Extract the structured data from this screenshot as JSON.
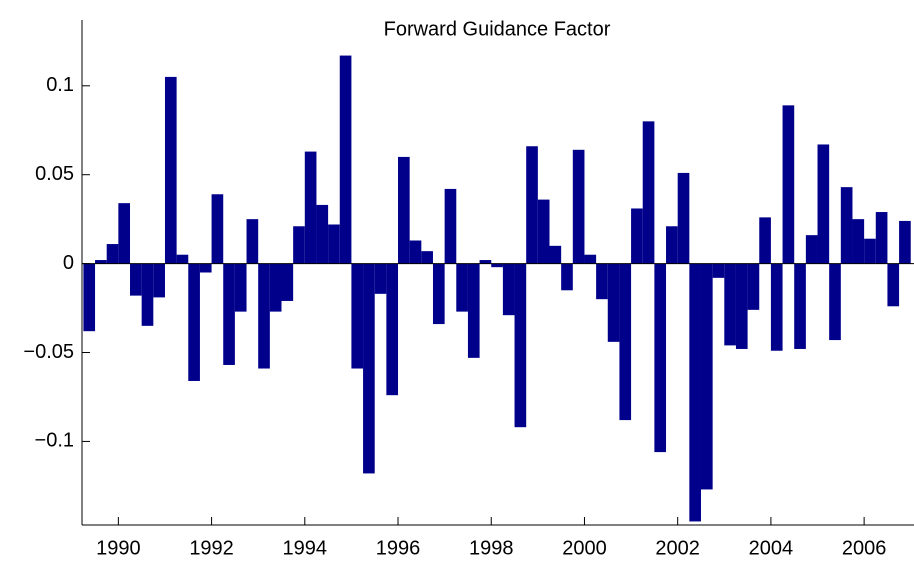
{
  "chart_data": {
    "type": "bar",
    "title": "Forward Guidance Factor",
    "color": "#00008b",
    "x": [
      1989.25,
      1989.5,
      1989.75,
      1990,
      1990.25,
      1990.5,
      1990.75,
      1991,
      1991.25,
      1991.5,
      1991.75,
      1992,
      1992.25,
      1992.5,
      1992.75,
      1993,
      1993.25,
      1993.5,
      1993.75,
      1994,
      1994.25,
      1994.5,
      1994.75,
      1995,
      1995.25,
      1995.5,
      1995.75,
      1996,
      1996.25,
      1996.5,
      1996.75,
      1997,
      1997.25,
      1997.5,
      1997.75,
      1998,
      1998.25,
      1998.5,
      1998.75,
      1999,
      1999.25,
      1999.5,
      1999.75,
      2000,
      2000.25,
      2000.5,
      2000.75,
      2001,
      2001.25,
      2001.5,
      2001.75,
      2002,
      2002.25,
      2002.5,
      2002.75,
      2003,
      2003.25,
      2003.5,
      2003.75,
      2004,
      2004.25,
      2004.5,
      2004.75,
      2005,
      2005.25,
      2005.5,
      2005.75,
      2006,
      2006.25,
      2006.5,
      2006.75
    ],
    "values": [
      -0.038,
      0.002,
      0.011,
      0.034,
      -0.018,
      -0.035,
      -0.019,
      0.105,
      0.005,
      -0.066,
      -0.005,
      0.039,
      -0.057,
      -0.027,
      0.025,
      -0.059,
      -0.027,
      -0.021,
      0.021,
      0.063,
      0.033,
      0.022,
      0.117,
      -0.059,
      -0.118,
      -0.017,
      -0.074,
      0.06,
      0.013,
      0.007,
      -0.034,
      0.042,
      -0.027,
      -0.053,
      0.002,
      -0.002,
      -0.029,
      -0.092,
      0.066,
      0.036,
      0.01,
      -0.015,
      0.064,
      0.005,
      -0.02,
      -0.044,
      -0.088,
      0.031,
      0.08,
      -0.106,
      0.021,
      0.051,
      -0.145,
      -0.127,
      -0.008,
      -0.046,
      -0.048,
      -0.026,
      0.026,
      -0.049,
      0.089,
      -0.048,
      0.016,
      0.067,
      -0.043,
      0.043,
      0.025,
      0.014,
      0.029,
      -0.024,
      0.024
    ],
    "bar_width": 0.25,
    "xlim": [
      1989.22,
      2007.07
    ],
    "xticks": [
      1990,
      1992,
      1994,
      1996,
      1998,
      2000,
      2002,
      2004,
      2006
    ],
    "ylim": [
      -0.147,
      0.137
    ],
    "yticks": [
      {
        "value": -0.1,
        "label": "−0.1"
      },
      {
        "value": -0.05,
        "label": "−0.05"
      },
      0,
      0.05,
      0.1
    ]
  }
}
